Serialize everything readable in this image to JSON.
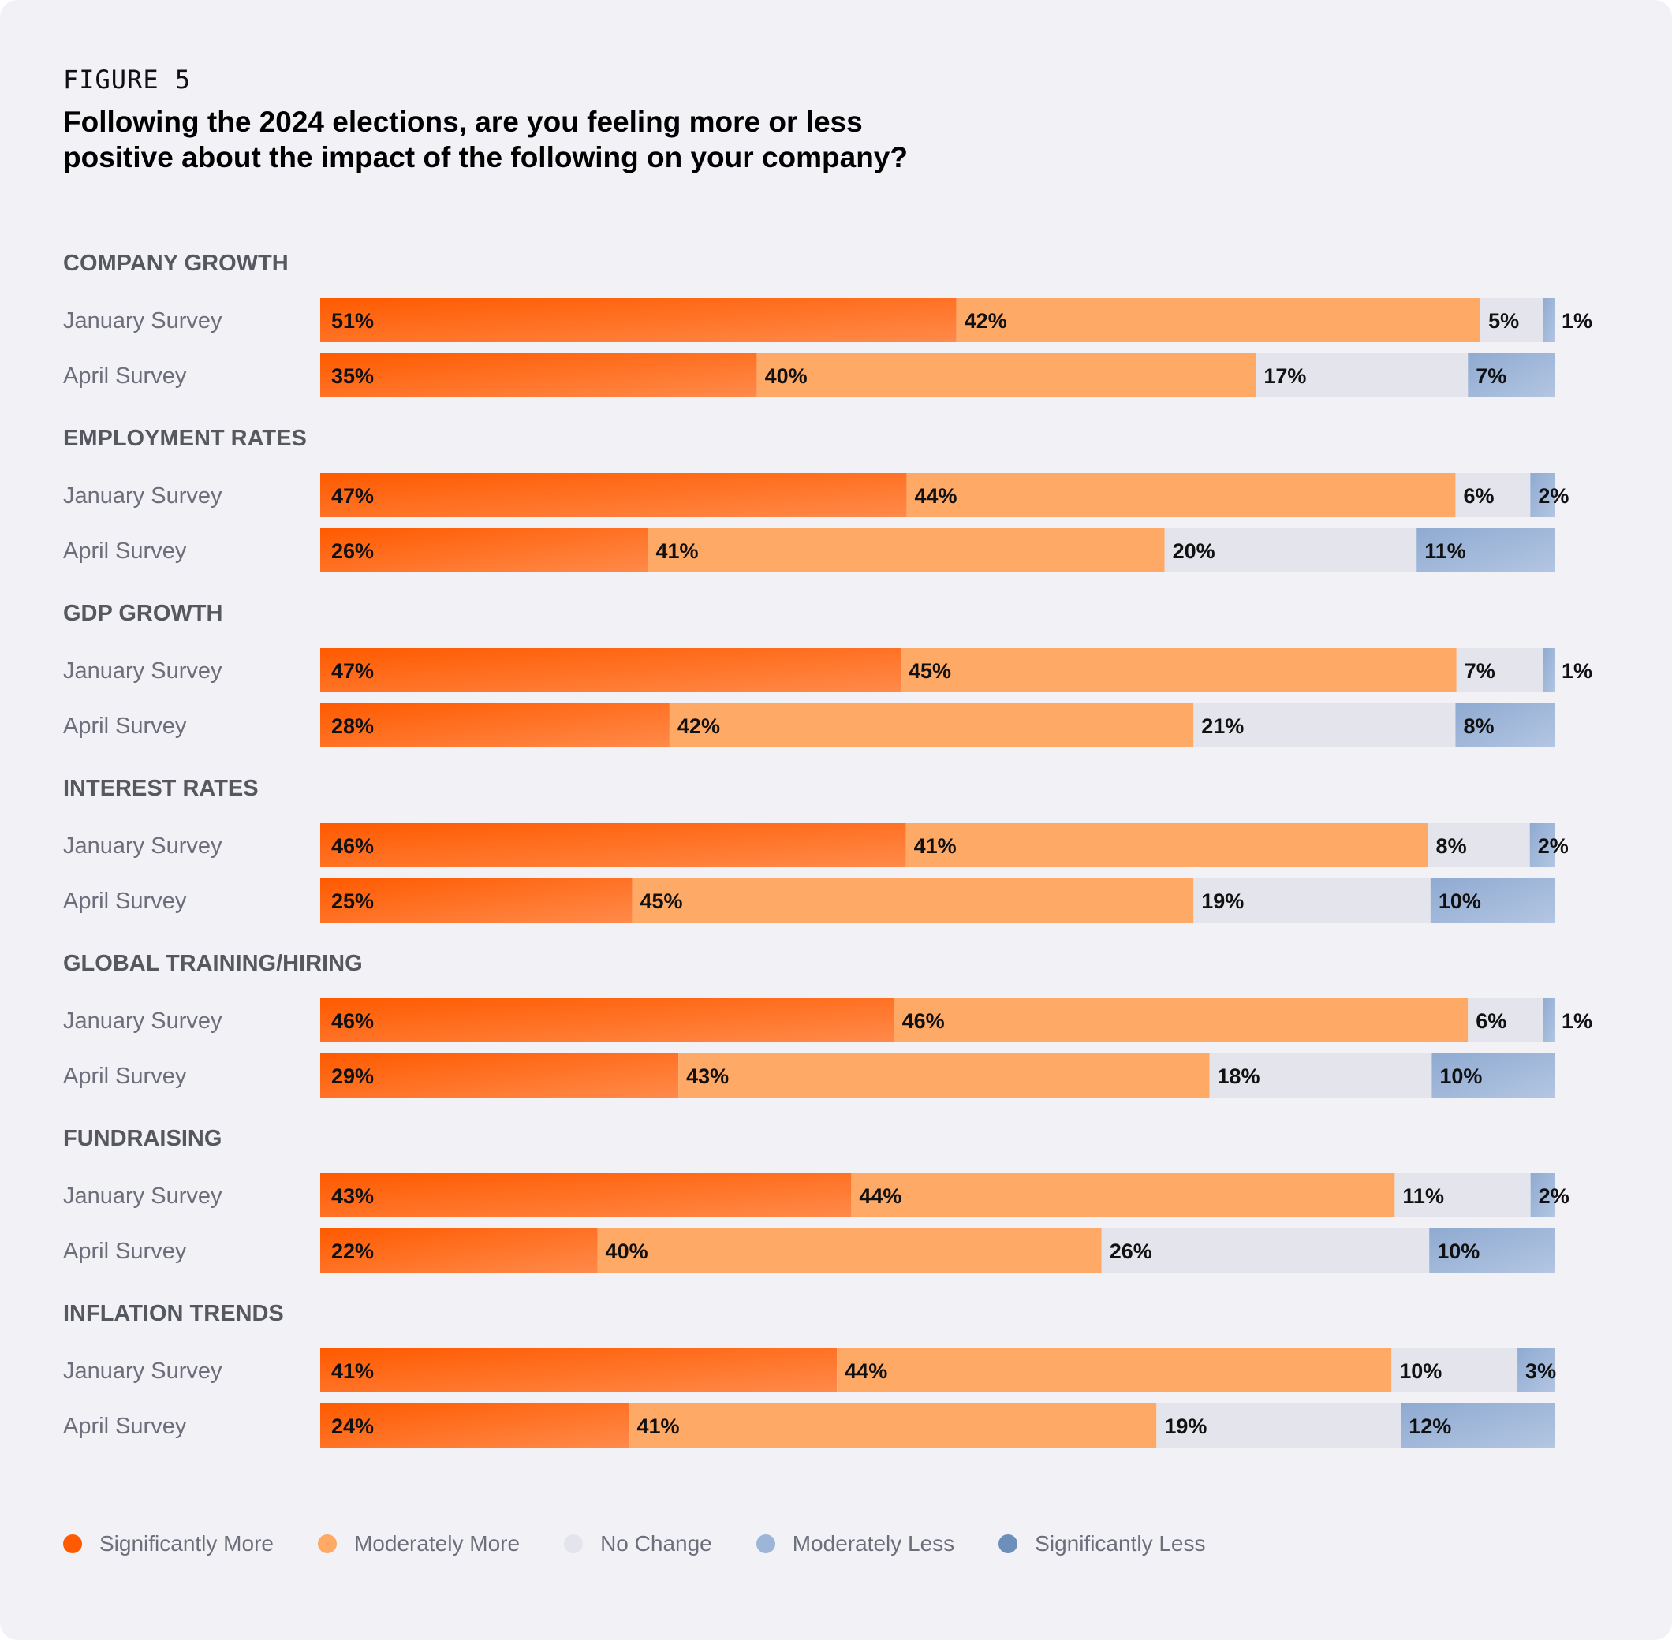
{
  "figure_label": "FIGURE 5",
  "title": "Following the 2024 elections, are you feeling more or less positive about the impact of the following on your company?",
  "colors": {
    "significantly_more": "#ff5a00",
    "moderately_more": "#ffa966",
    "no_change": "#e3e4ec",
    "moderately_less": "#9db5d6",
    "significantly_less": "#6d8fba",
    "group_label": "#55585f",
    "row_label": "#6c6f7b",
    "value_label": "#111111"
  },
  "chart_data": {
    "type": "bar",
    "orientation": "horizontal",
    "stacked": true,
    "title": "Following the 2024 elections, are you feeling more or less positive about the impact of the following on your company?",
    "xlabel": "",
    "ylabel": "",
    "xlim": [
      0,
      100
    ],
    "grid": false,
    "legend_position": "bottom-left",
    "series_names": [
      "Significantly More",
      "Moderately More",
      "No Change",
      "Moderately Less",
      "Significantly Less"
    ],
    "groups": [
      {
        "name": "COMPANY GROWTH",
        "rows": [
          {
            "label": "January Survey",
            "values": [
              51,
              42,
              5,
              1,
              0
            ],
            "value_labels": [
              "51%",
              "42%",
              "5%",
              "1%",
              ""
            ]
          },
          {
            "label": "April Survey",
            "values": [
              35,
              40,
              17,
              7,
              0
            ],
            "value_labels": [
              "35%",
              "40%",
              "17%",
              "7%",
              ""
            ]
          }
        ]
      },
      {
        "name": "EMPLOYMENT RATES",
        "rows": [
          {
            "label": "January Survey",
            "values": [
              47,
              44,
              6,
              2,
              0
            ],
            "value_labels": [
              "47%",
              "44%",
              "6%",
              "2%",
              ""
            ]
          },
          {
            "label": "April Survey",
            "values": [
              26,
              41,
              20,
              11,
              0
            ],
            "value_labels": [
              "26%",
              "41%",
              "20%",
              "11%",
              ""
            ]
          }
        ]
      },
      {
        "name": "GDP GROWTH",
        "rows": [
          {
            "label": "January Survey",
            "values": [
              47,
              45,
              7,
              1,
              0
            ],
            "value_labels": [
              "47%",
              "45%",
              "7%",
              "1%",
              ""
            ]
          },
          {
            "label": "April Survey",
            "values": [
              28,
              42,
              21,
              8,
              0
            ],
            "value_labels": [
              "28%",
              "42%",
              "21%",
              "8%",
              ""
            ]
          }
        ]
      },
      {
        "name": "INTEREST RATES",
        "rows": [
          {
            "label": "January Survey",
            "values": [
              46,
              41,
              8,
              2,
              0
            ],
            "value_labels": [
              "46%",
              "41%",
              "8%",
              "2%",
              ""
            ]
          },
          {
            "label": "April Survey",
            "values": [
              25,
              45,
              19,
              10,
              0
            ],
            "value_labels": [
              "25%",
              "45%",
              "19%",
              "10%",
              ""
            ]
          }
        ]
      },
      {
        "name": "GLOBAL TRAINING/HIRING",
        "rows": [
          {
            "label": "January Survey",
            "values": [
              46,
              46,
              6,
              1,
              0
            ],
            "value_labels": [
              "46%",
              "46%",
              "6%",
              "1%",
              ""
            ]
          },
          {
            "label": "April Survey",
            "values": [
              29,
              43,
              18,
              10,
              0
            ],
            "value_labels": [
              "29%",
              "43%",
              "18%",
              "10%",
              ""
            ]
          }
        ]
      },
      {
        "name": "FUNDRAISING",
        "rows": [
          {
            "label": "January Survey",
            "values": [
              43,
              44,
              11,
              2,
              0
            ],
            "value_labels": [
              "43%",
              "44%",
              "11%",
              "2%",
              ""
            ]
          },
          {
            "label": "April Survey",
            "values": [
              22,
              40,
              26,
              10,
              0
            ],
            "value_labels": [
              "22%",
              "40%",
              "26%",
              "10%",
              ""
            ]
          }
        ]
      },
      {
        "name": "INFLATION TRENDS",
        "rows": [
          {
            "label": "January Survey",
            "values": [
              41,
              44,
              10,
              3,
              0
            ],
            "value_labels": [
              "41%",
              "44%",
              "10%",
              "3%",
              ""
            ]
          },
          {
            "label": "April Survey",
            "values": [
              24,
              41,
              19,
              12,
              0
            ],
            "value_labels": [
              "24%",
              "41%",
              "19%",
              "12%",
              ""
            ]
          }
        ]
      }
    ]
  },
  "legend": [
    {
      "label": "Significantly More",
      "color": "#ff5a00"
    },
    {
      "label": "Moderately More",
      "color": "#ffa966"
    },
    {
      "label": "No Change",
      "color": "#e3e4ec"
    },
    {
      "label": "Moderately Less",
      "color": "#9db5d6"
    },
    {
      "label": "Significantly Less",
      "color": "#6d8fba"
    }
  ]
}
